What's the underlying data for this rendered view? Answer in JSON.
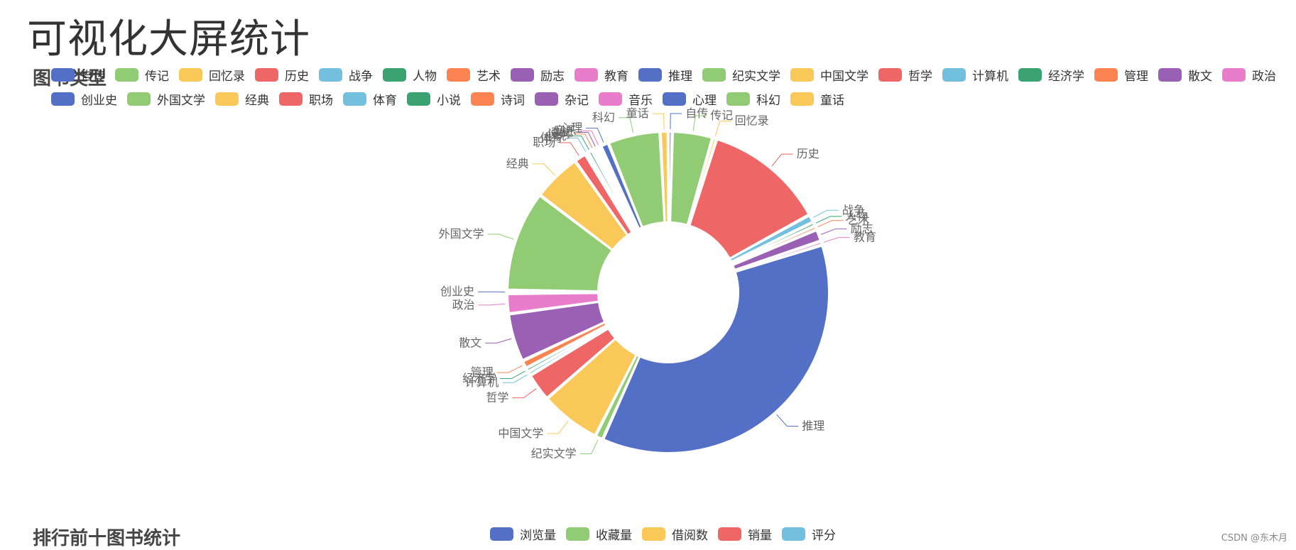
{
  "page": {
    "title": "可视化大屏统计",
    "section1_title": "图书类型",
    "section2_title": "排行前十图书统计",
    "watermark": "CSDN @东木月"
  },
  "colors": [
    "#5470c6",
    "#91cc75",
    "#fac858",
    "#ee6666",
    "#73c0de",
    "#3ba272",
    "#fc8452",
    "#9a60b4",
    "#ea7ccc"
  ],
  "chart_data": {
    "type": "pie",
    "variant": "donut",
    "title": "图书类型",
    "legend_placement": "top",
    "categories": [
      "自传",
      "传记",
      "回忆录",
      "历史",
      "战争",
      "人物",
      "艺术",
      "励志",
      "教育",
      "推理",
      "纪实文学",
      "中国文学",
      "哲学",
      "计算机",
      "经济学",
      "管理",
      "散文",
      "政治",
      "创业史",
      "外国文学",
      "经典",
      "职场",
      "体育",
      "小说",
      "诗词",
      "杂记",
      "音乐",
      "心理",
      "科幻",
      "童话"
    ],
    "values": [
      1,
      10,
      1,
      30,
      2,
      1,
      1,
      3,
      1,
      90,
      2,
      15,
      7,
      1,
      1,
      2,
      12,
      5,
      0,
      25,
      12,
      3,
      0,
      1,
      0,
      0,
      0,
      2,
      13,
      2
    ]
  },
  "chart2_legend": [
    "浏览量",
    "收藏量",
    "借阅数",
    "销量",
    "评分"
  ]
}
